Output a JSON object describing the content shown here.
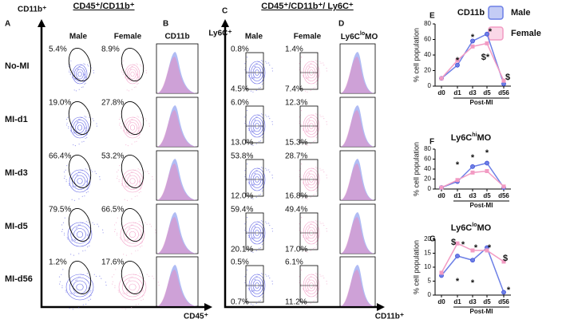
{
  "figure": {
    "headers": [
      "CD45⁺/CD11b⁺",
      "CD45⁺/CD11b⁺/ Ly6C⁺"
    ],
    "panel_letters": [
      "A",
      "B",
      "C",
      "D",
      "E",
      "F",
      "G"
    ],
    "axis_labels": [
      "CD11b⁺",
      "CD45⁺",
      "Ly6C⁺",
      "CD11b⁺"
    ],
    "row_labels": [
      "No-MI",
      "MI-d1",
      "MI-d3",
      "MI-d5",
      "MI-d56"
    ],
    "columns_left": [
      "Male",
      "Female",
      "CD11b"
    ],
    "columns_right": [
      "Male",
      "Female"
    ],
    "column_d_parts": [
      "Ly6C",
      "lo",
      "MO"
    ],
    "a_male": [
      "5.4%",
      "19.0%",
      "66.4%",
      "79.5%",
      "1.2%"
    ],
    "a_female": [
      "8.9%",
      "27.8%",
      "53.2%",
      "66.5%",
      "17.6%"
    ],
    "c_male_top": [
      "0.8%",
      "6.0%",
      "53.8%",
      "59.4%",
      "0.5%"
    ],
    "c_male_bottom": [
      "4.5%",
      "13.0%",
      "12.0%",
      "20.1%",
      "0.7%"
    ],
    "c_female_top": [
      "1.4%",
      "12.3%",
      "28.7%",
      "49.4%",
      "6.1%"
    ],
    "c_female_bottom": [
      "7.4%",
      "15.3%",
      "16.8%",
      "17.0%",
      "11.2%"
    ]
  },
  "chart_data": [
    {
      "type": "line",
      "title_parts": [
        "CD11b",
        "",
        ""
      ],
      "categories": [
        "d0",
        "d1",
        "d3",
        "d5",
        "d56"
      ],
      "series": [
        {
          "name": "Male",
          "color": "#6c7fe6",
          "values": [
            10,
            27,
            58,
            67,
            3
          ]
        },
        {
          "name": "Female",
          "color": "#f29bc3",
          "values": [
            10,
            33,
            51,
            55,
            7
          ]
        }
      ],
      "ylim": [
        0,
        80
      ],
      "yticks": [
        0,
        20,
        40,
        60,
        80
      ],
      "ylabel": "% cell population",
      "xlabel": "Post-MI",
      "annotations": [
        "*",
        "*",
        "*",
        "$*",
        "$"
      ]
    },
    {
      "type": "line",
      "title_parts": [
        "Ly6C",
        "hi",
        "MO"
      ],
      "categories": [
        "d0",
        "d1",
        "d3",
        "d5",
        "d56"
      ],
      "series": [
        {
          "name": "Male",
          "color": "#6c7fe6",
          "values": [
            3,
            15,
            45,
            52,
            3
          ]
        },
        {
          "name": "Female",
          "color": "#f29bc3",
          "values": [
            3,
            18,
            33,
            36,
            5
          ]
        }
      ],
      "ylim": [
        0,
        80
      ],
      "yticks": [
        0,
        20,
        40,
        60,
        80
      ],
      "ylabel": "% cell population",
      "xlabel": "Post-MI",
      "annotations": [
        "*",
        "*",
        "*"
      ]
    },
    {
      "type": "line",
      "title_parts": [
        "Ly6C",
        "lo",
        "MO"
      ],
      "categories": [
        "d0",
        "d1",
        "d3",
        "d5",
        "d56"
      ],
      "series": [
        {
          "name": "Male",
          "color": "#6c7fe6",
          "values": [
            7,
            14,
            12.5,
            17,
            1
          ]
        },
        {
          "name": "Female",
          "color": "#f29bc3",
          "values": [
            8,
            18.5,
            16,
            16,
            12
          ]
        }
      ],
      "ylim": [
        0,
        20
      ],
      "yticks": [
        0,
        5,
        10,
        15,
        20
      ],
      "ylabel": "% cell population",
      "xlabel": "Post-MI",
      "annotations": [
        "$",
        "*",
        "*",
        "*",
        "$",
        "*",
        "*",
        "*"
      ]
    }
  ]
}
